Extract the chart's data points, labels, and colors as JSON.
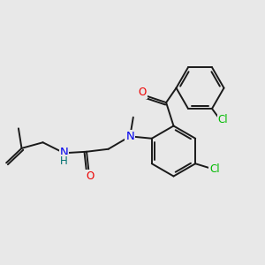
{
  "bg_color": "#e8e8e8",
  "bond_color": "#1a1a1a",
  "bond_width": 1.4,
  "atom_colors": {
    "N": "#0000ee",
    "O": "#ee0000",
    "Cl": "#00bb00",
    "H": "#007070",
    "C": "#1a1a1a"
  },
  "font_size_atom": 8.5,
  "xlim": [
    0,
    10
  ],
  "ylim": [
    0,
    10
  ]
}
